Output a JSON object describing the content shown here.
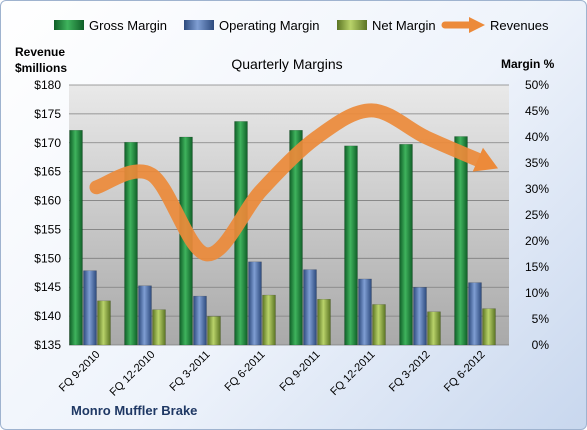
{
  "chart_data": {
    "type": "bar",
    "title": "Quarterly Margins",
    "company": "Monro Muffler Brake",
    "y_left_label_line1": "Revenue",
    "y_left_label_line2": "$millions",
    "y_right_label": "Margin %",
    "categories": [
      "FQ 9-2010",
      "FQ 12-2010",
      "FQ 3-2011",
      "FQ 6-2011",
      "FQ 9-2011",
      "FQ 12-2011",
      "FQ 3-2012",
      "FQ 6-2012"
    ],
    "y_left_ticks": [
      "$135",
      "$140",
      "$145",
      "$150",
      "$155",
      "$160",
      "$165",
      "$170",
      "$175",
      "$180"
    ],
    "y_right_ticks": [
      "0%",
      "5%",
      "10%",
      "15%",
      "20%",
      "25%",
      "30%",
      "35%",
      "40%",
      "45%",
      "50%"
    ],
    "ylim_left": [
      135,
      180
    ],
    "ylim_right": [
      0,
      50
    ],
    "series": [
      {
        "name": "Gross Margin",
        "axis": "right",
        "kind": "bar",
        "color": "#1d8a3c",
        "values": [
          41.3,
          39.0,
          40.0,
          43.0,
          41.3,
          38.3,
          38.6,
          40.1
        ]
      },
      {
        "name": "Operating Margin",
        "axis": "right",
        "kind": "bar",
        "color": "#4a6fb0",
        "values": [
          14.3,
          11.4,
          9.4,
          16.0,
          14.5,
          12.7,
          11.1,
          12.0
        ]
      },
      {
        "name": "Net Margin",
        "axis": "right",
        "kind": "bar",
        "color": "#8caa3e",
        "values": [
          8.5,
          6.8,
          5.5,
          9.6,
          8.8,
          7.8,
          6.4,
          7.0
        ]
      },
      {
        "name": "Revenues",
        "axis": "left",
        "kind": "line",
        "color": "#ec8a3a",
        "values": [
          162.3,
          164.5,
          150.7,
          161.8,
          170.9,
          175.6,
          170.9,
          166.8
        ]
      }
    ],
    "grid": true,
    "legend": "top"
  }
}
